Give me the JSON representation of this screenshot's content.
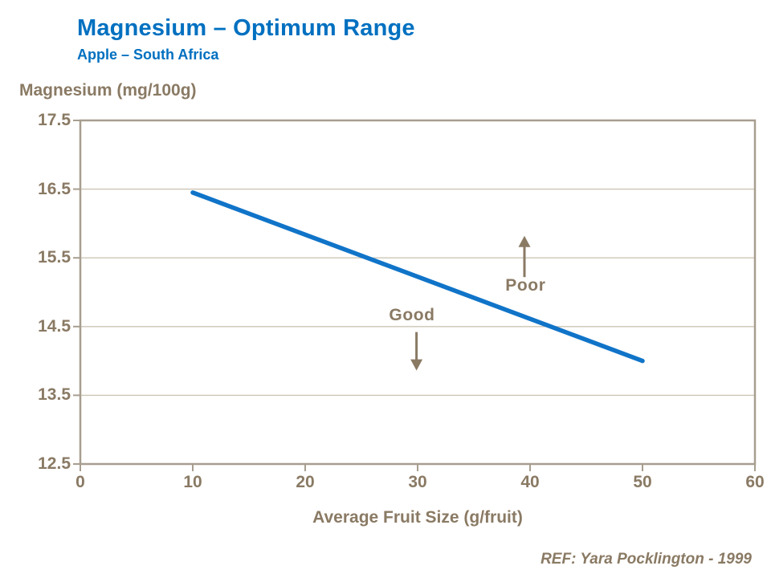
{
  "header": {
    "title": "Magnesium – Optimum Range",
    "subtitle": "Apple – South Africa"
  },
  "colors": {
    "title_blue": "#0070C0",
    "line_blue": "#1074C8",
    "text_taupe": "#8A7A64",
    "gridline": "#CDC5B6",
    "axis": "#A79E8F"
  },
  "chart_data": {
    "type": "line",
    "ylabel": "Magnesium (mg/100g)",
    "xlabel": "Average Fruit Size (g/fruit)",
    "xlim": [
      0,
      60
    ],
    "ylim": [
      12.5,
      17.5
    ],
    "x_ticks": [
      0,
      10,
      20,
      30,
      40,
      50,
      60
    ],
    "y_ticks": [
      17.5,
      16.5,
      15.5,
      14.5,
      13.5,
      12.5
    ],
    "grid": "horizontal-only",
    "legend": "none",
    "series": [
      {
        "name": "optimum-range",
        "x": [
          10,
          50
        ],
        "y": [
          16.45,
          14.0
        ]
      }
    ],
    "annotations": [
      {
        "label": "Good",
        "x": 29.5,
        "y": 14.65,
        "arrow": {
          "x": 29.9,
          "from_y": 14.42,
          "to_y": 13.86,
          "direction": "down"
        }
      },
      {
        "label": "Poor",
        "x": 39.6,
        "y": 15.08,
        "arrow": {
          "x": 39.5,
          "from_y": 15.22,
          "to_y": 15.82,
          "direction": "up"
        }
      }
    ]
  },
  "footer": {
    "reference": "REF: Yara Pocklington - 1999"
  }
}
